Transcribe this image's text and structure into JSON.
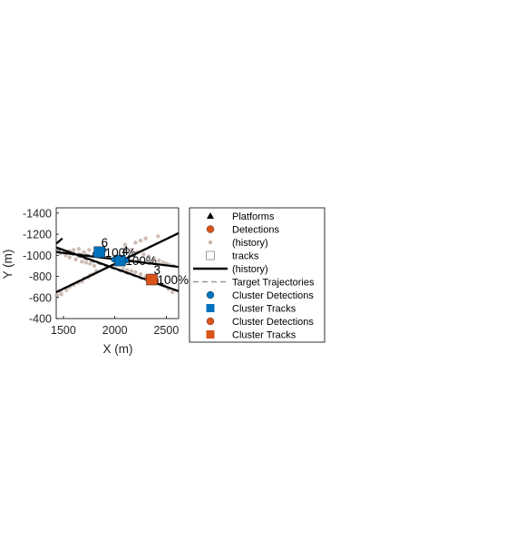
{
  "chart_data": {
    "type": "scatter",
    "xlabel": "X (m)",
    "ylabel": "Y (m)",
    "xlim": [
      1430,
      2620
    ],
    "ylim": [
      -1450,
      -400
    ],
    "y_reversed": true,
    "grid": false,
    "x_ticks": [
      1500,
      2000,
      2500
    ],
    "x_tick_labels": [
      "1500",
      "2000",
      "2500"
    ],
    "y_ticks": [
      -1400,
      -1200,
      -1000,
      -800,
      -600,
      -400
    ],
    "y_tick_labels": [
      "-1400",
      "-1200",
      "-1000",
      "-800",
      "-600",
      "-400"
    ],
    "legend_position": "right",
    "colors": {
      "detections": "#D95319",
      "history": "#C9B6AE",
      "cluster_blue": "#0072BD",
      "cluster_orange": "#D95319",
      "trajectory": "#888888",
      "track_line": "#000000"
    },
    "legend": [
      {
        "label": "Platforms",
        "marker": "triangle",
        "color": "#000000"
      },
      {
        "label": "Detections",
        "marker": "circle",
        "color": "#D95319"
      },
      {
        "label": "(history)",
        "marker": "dot",
        "color": "#C9B6AE"
      },
      {
        "label": "tracks",
        "marker": "square-open",
        "color": "#888888"
      },
      {
        "label": "(history)",
        "marker": "line",
        "color": "#000000"
      },
      {
        "label": "Target Trajectories",
        "marker": "dashed",
        "color": "#999999"
      },
      {
        "label": "Cluster Detections",
        "marker": "circle",
        "color": "#0072BD"
      },
      {
        "label": "Cluster Tracks",
        "marker": "square",
        "color": "#0072BD"
      },
      {
        "label": "Cluster Detections",
        "marker": "circle",
        "color": "#D95319"
      },
      {
        "label": "Cluster Tracks",
        "marker": "square",
        "color": "#D95319"
      }
    ],
    "trajectories": [
      {
        "name": "",
        "x": [
          1430,
          2620
        ],
        "y": [
          -1045,
          -895
        ]
      },
      {
        "name": "",
        "x": [
          1430,
          2620
        ],
        "y": [
          -655,
          -1215
        ]
      },
      {
        "name": "",
        "x": [
          1430,
          2620
        ],
        "y": [
          -1060,
          -655
        ]
      }
    ],
    "track_history": [
      {
        "x": [
          1430,
          2620
        ],
        "y": [
          -1030,
          -890
        ]
      },
      {
        "x": [
          1430,
          2620
        ],
        "y": [
          -650,
          -1210
        ]
      },
      {
        "x": [
          1430,
          2620
        ],
        "y": [
          -1075,
          -660
        ]
      },
      {
        "x": [
          1430,
          1490
        ],
        "y": [
          -1110,
          -1160
        ]
      }
    ],
    "detection_history": {
      "x": [
        1440,
        1480,
        1470,
        1530,
        1560,
        1600,
        1640,
        1680,
        1700,
        1740,
        1760,
        1790,
        1820,
        1560,
        1600,
        1650,
        1700,
        1750,
        1800,
        1470,
        1520,
        1560,
        1620,
        1680,
        1720,
        1760,
        1800,
        2080,
        2120,
        2160,
        2200,
        2250,
        2300,
        2350,
        2400,
        2450,
        2480,
        2520,
        2560,
        2100,
        2160,
        2220,
        2280,
        2330,
        2380,
        2430,
        2470,
        2500,
        2530,
        2570,
        2100,
        2200,
        2250,
        2300,
        2420
      ],
      "y": [
        -620,
        -630,
        -660,
        -670,
        -700,
        -720,
        -740,
        -750,
        -780,
        -790,
        -810,
        -820,
        -850,
        -1040,
        -1050,
        -1060,
        -1030,
        -1050,
        -1020,
        -1020,
        -1000,
        -980,
        -960,
        -940,
        -930,
        -920,
        -900,
        -870,
        -860,
        -850,
        -840,
        -820,
        -800,
        -780,
        -760,
        -730,
        -710,
        -680,
        -650,
        -1060,
        -1050,
        -1030,
        -1010,
        -990,
        -970,
        -950,
        -930,
        -920,
        -910,
        -900,
        -1100,
        -1120,
        -1140,
        -1160,
        -1180
      ]
    },
    "cluster_tracks": [
      {
        "id": "6",
        "score": "100%",
        "x": 1850,
        "y": -1030,
        "color": "#0072BD"
      },
      {
        "id": "4",
        "score": "100%",
        "x": 2050,
        "y": -950,
        "color": "#0072BD"
      },
      {
        "id": "3",
        "score": "100%",
        "x": 2360,
        "y": -770,
        "color": "#D95319"
      }
    ],
    "cluster_detections": [
      {
        "x": 1810,
        "y": -1010,
        "color": "#0072BD"
      },
      {
        "x": 1890,
        "y": -1050,
        "color": "#0072BD"
      },
      {
        "x": 1990,
        "y": -960,
        "color": "#0072BD"
      },
      {
        "x": 2110,
        "y": -950,
        "color": "#0072BD"
      },
      {
        "x": 2320,
        "y": -775,
        "color": "#D95319"
      },
      {
        "x": 2400,
        "y": -760,
        "color": "#D95319"
      }
    ]
  }
}
